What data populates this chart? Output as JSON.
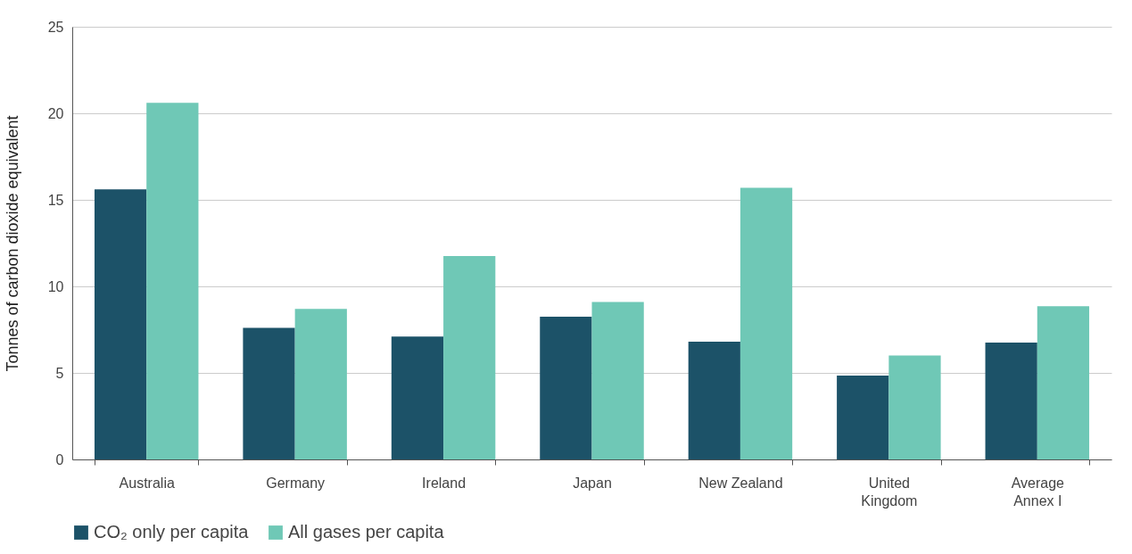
{
  "chart_data": {
    "type": "bar",
    "ylabel": "Tonnes of carbon dioxide equivalent",
    "categories": [
      "Australia",
      "Germany",
      "Ireland",
      "Japan",
      "New Zealand",
      "United Kingdom",
      "Average Annex I"
    ],
    "series": [
      {
        "name": "CO₂ only per capita",
        "color": "#1c5268",
        "values": [
          15.6,
          7.6,
          7.1,
          8.25,
          6.8,
          4.85,
          6.75
        ]
      },
      {
        "name": "All gases per capita",
        "color": "#6fc8b6",
        "values": [
          20.6,
          8.7,
          11.75,
          9.1,
          15.7,
          6.0,
          8.85
        ]
      }
    ],
    "ylim": [
      0,
      25
    ],
    "yticks": [
      0,
      5,
      10,
      15,
      20,
      25
    ],
    "grid": "y",
    "legend": "bottom"
  }
}
